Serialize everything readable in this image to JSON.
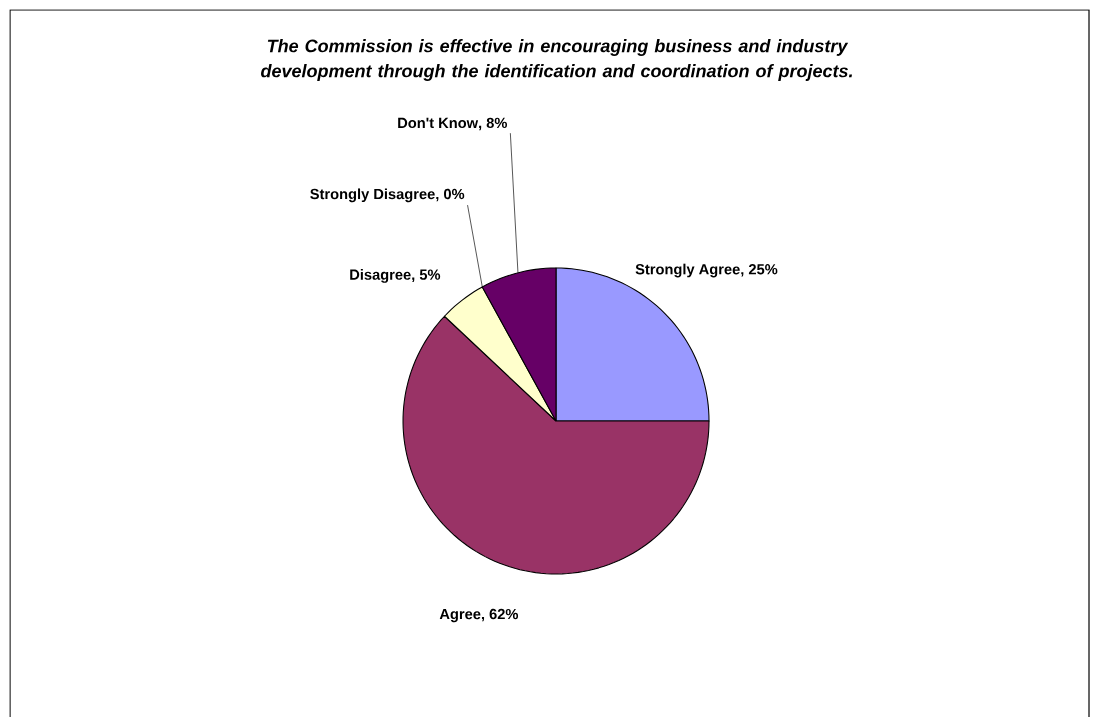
{
  "chart_data": {
    "type": "pie",
    "title": "The Commission is effective in encouraging business and industry development through the identification and coordination of projects.",
    "categories": [
      "Strongly Agree",
      "Agree",
      "Disagree",
      "Strongly Disagree",
      "Don't Know"
    ],
    "values": [
      25,
      62,
      5,
      0,
      8
    ],
    "value_labels": [
      ", 25%",
      ", 62%",
      ", 5%",
      ", 0%",
      ", 8%"
    ],
    "colors": [
      "#9999ff",
      "#993366",
      "#ffffcc",
      "#ccffff",
      "#660066"
    ]
  }
}
